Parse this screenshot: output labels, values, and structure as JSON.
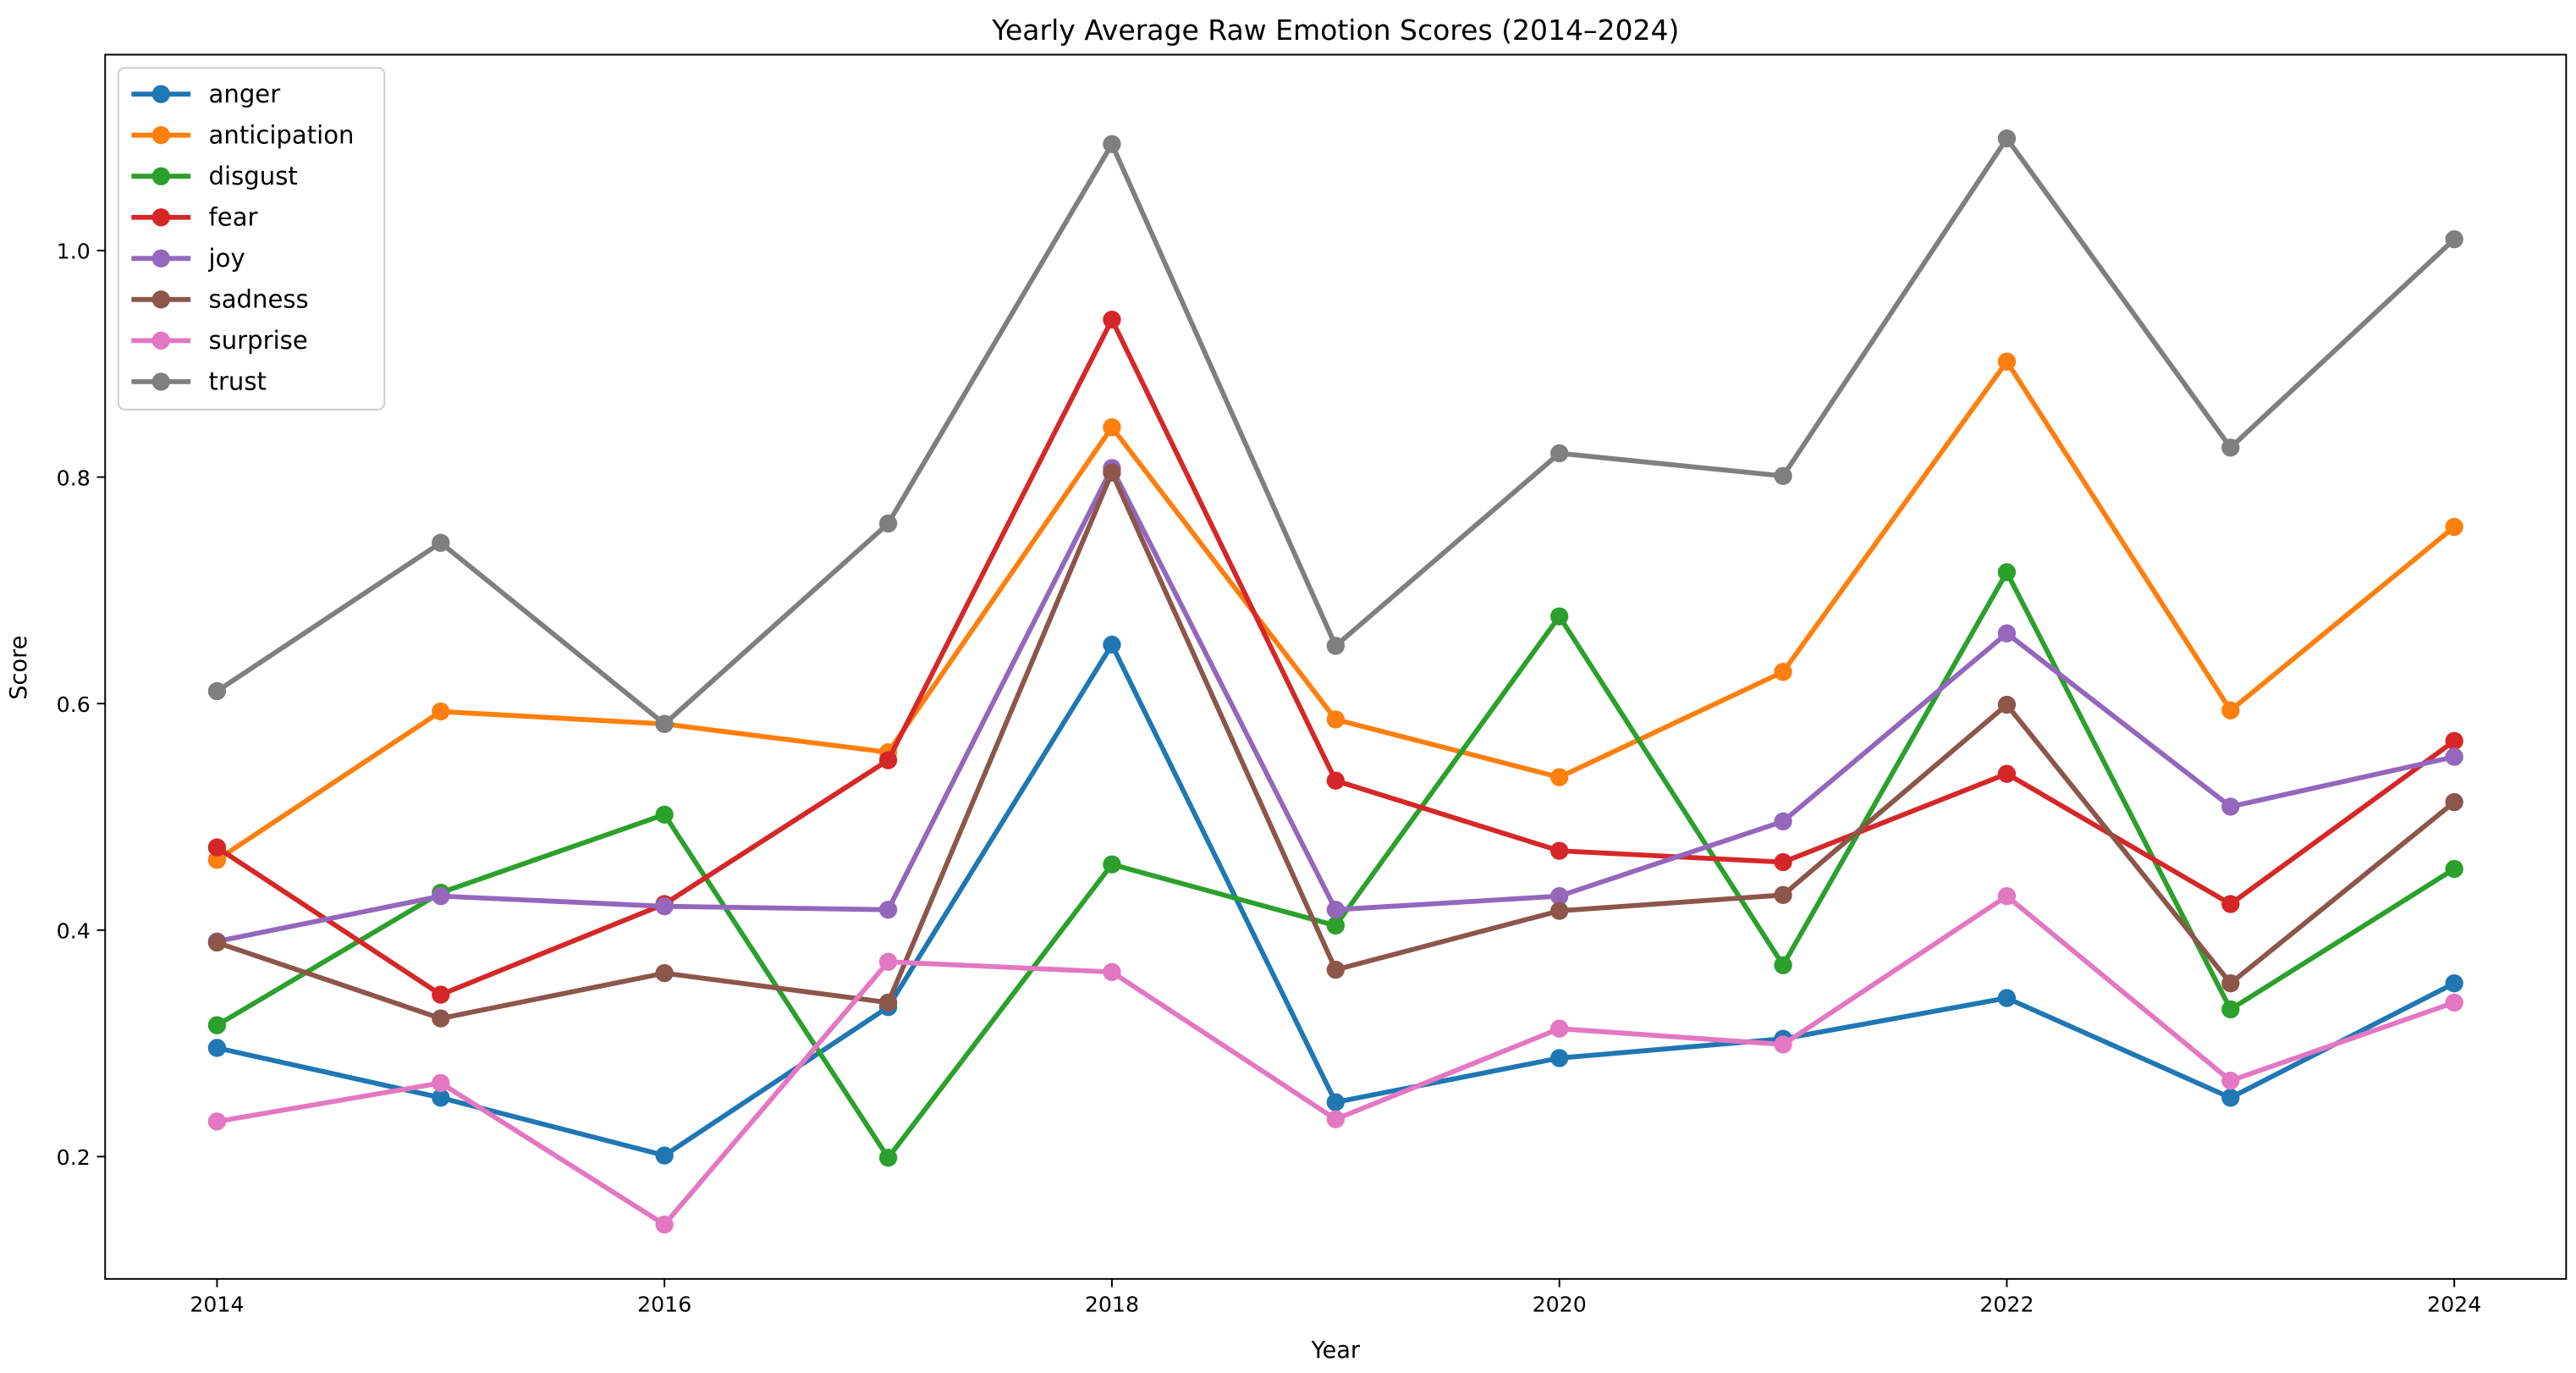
{
  "chart_data": {
    "type": "line",
    "title": "Yearly Average Raw Emotion Scores (2014–2024)",
    "xlabel": "Year",
    "ylabel": "Score",
    "x": [
      2014,
      2015,
      2016,
      2017,
      2018,
      2019,
      2020,
      2021,
      2022,
      2023,
      2024
    ],
    "xticks": [
      2014,
      2016,
      2018,
      2020,
      2022,
      2024
    ],
    "yticks": [
      0.2,
      0.4,
      0.6,
      0.8,
      1.0
    ],
    "ytick_labels": [
      "0.2",
      "0.4",
      "0.6",
      "0.8",
      "1.0"
    ],
    "xlim": [
      2013.5,
      2024.5
    ],
    "ylim": [
      0.092,
      1.173
    ],
    "grid": false,
    "legend_position": "top-left",
    "series": [
      {
        "name": "anger",
        "color": "#1f77b4",
        "values": [
          0.296,
          0.252,
          0.201,
          0.332,
          0.652,
          0.248,
          0.287,
          0.304,
          0.34,
          0.252,
          0.353
        ]
      },
      {
        "name": "anticipation",
        "color": "#ff7f0e",
        "values": [
          0.462,
          0.593,
          0.582,
          0.557,
          0.844,
          0.586,
          0.535,
          0.628,
          0.902,
          0.594,
          0.756
        ]
      },
      {
        "name": "disgust",
        "color": "#2ca02c",
        "values": [
          0.316,
          0.433,
          0.502,
          0.199,
          0.458,
          0.404,
          0.677,
          0.369,
          0.716,
          0.33,
          0.454
        ]
      },
      {
        "name": "fear",
        "color": "#d62728",
        "values": [
          0.473,
          0.343,
          0.423,
          0.55,
          0.939,
          0.532,
          0.47,
          0.46,
          0.538,
          0.423,
          0.567
        ]
      },
      {
        "name": "joy",
        "color": "#9467bd",
        "values": [
          0.39,
          0.43,
          0.421,
          0.418,
          0.808,
          0.418,
          0.43,
          0.496,
          0.662,
          0.509,
          0.553
        ]
      },
      {
        "name": "sadness",
        "color": "#8c564b",
        "values": [
          0.389,
          0.322,
          0.362,
          0.336,
          0.804,
          0.365,
          0.417,
          0.431,
          0.599,
          0.353,
          0.513
        ]
      },
      {
        "name": "surprise",
        "color": "#e377c2",
        "values": [
          0.231,
          0.265,
          0.14,
          0.372,
          0.363,
          0.233,
          0.313,
          0.299,
          0.43,
          0.267,
          0.336
        ]
      },
      {
        "name": "trust",
        "color": "#7f7f7f",
        "values": [
          0.611,
          0.742,
          0.582,
          0.759,
          1.094,
          0.651,
          0.821,
          0.801,
          1.099,
          0.826,
          1.01
        ]
      }
    ]
  }
}
